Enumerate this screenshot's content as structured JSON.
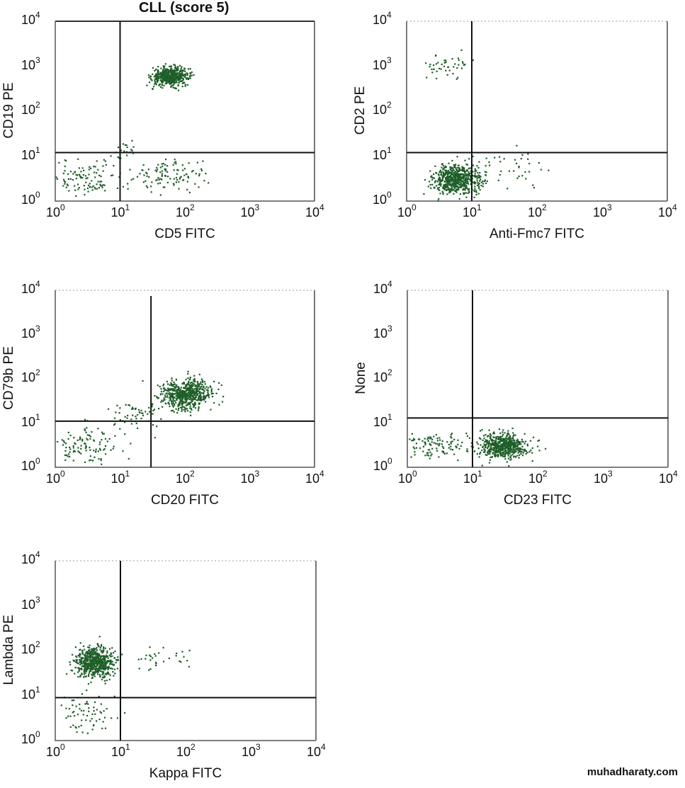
{
  "chart_data": [
    {
      "type": "scatter",
      "title": "CLL (score 5)",
      "xlabel": "CD5 FITC",
      "ylabel": "CD19 PE",
      "xscale": "log",
      "yscale": "log",
      "xlim": [
        1,
        10000
      ],
      "ylim": [
        1,
        10000
      ],
      "xticks": [
        "10^0",
        "10^1",
        "10^2",
        "10^3",
        "10^4"
      ],
      "yticks": [
        "10^0",
        "10^1",
        "10^2",
        "10^3",
        "10^4"
      ],
      "quadrant_x": 10,
      "quadrant_y": 12,
      "clusters": [
        {
          "x": 60,
          "y": 600,
          "sx": 0.14,
          "sy": 0.1,
          "n": 520
        },
        {
          "x": 3,
          "y": 3,
          "sx": 0.3,
          "sy": 0.22,
          "n": 110
        },
        {
          "x": 60,
          "y": 4,
          "sx": 0.3,
          "sy": 0.2,
          "n": 110
        },
        {
          "x": 12,
          "y": 14,
          "sx": 0.1,
          "sy": 0.1,
          "n": 20
        }
      ]
    },
    {
      "type": "scatter",
      "title": "",
      "xlabel": "Anti-Fmc7 FITC",
      "ylabel": "CD2 PE",
      "xscale": "log",
      "yscale": "log",
      "xlim": [
        1,
        10000
      ],
      "ylim": [
        1,
        10000
      ],
      "xticks": [
        "10^0",
        "10^1",
        "10^2",
        "10^3",
        "10^4"
      ],
      "yticks": [
        "10^0",
        "10^1",
        "10^2",
        "10^3",
        "10^4"
      ],
      "quadrant_x": 10,
      "quadrant_y": 12,
      "clusters": [
        {
          "x": 6,
          "y": 3,
          "sx": 0.18,
          "sy": 0.16,
          "n": 620
        },
        {
          "x": 4,
          "y": 1000,
          "sx": 0.2,
          "sy": 0.12,
          "n": 45
        },
        {
          "x": 40,
          "y": 5,
          "sx": 0.3,
          "sy": 0.25,
          "n": 40
        }
      ]
    },
    {
      "type": "scatter",
      "title": "",
      "xlabel": "CD20 FITC",
      "ylabel": "CD79b PE",
      "xscale": "log",
      "yscale": "log",
      "xlim": [
        1,
        10000
      ],
      "ylim": [
        1,
        10000
      ],
      "xticks": [
        "10^0",
        "10^1",
        "10^2",
        "10^3",
        "10^4"
      ],
      "yticks": [
        "10^0",
        "10^1",
        "10^2",
        "10^3",
        "10^4"
      ],
      "quadrant_x": 30,
      "quadrant_y": 11,
      "clusters": [
        {
          "x": 100,
          "y": 45,
          "sx": 0.2,
          "sy": 0.17,
          "n": 600
        },
        {
          "x": 3,
          "y": 3,
          "sx": 0.28,
          "sy": 0.22,
          "n": 110
        },
        {
          "x": 18,
          "y": 15,
          "sx": 0.25,
          "sy": 0.22,
          "n": 60
        }
      ]
    },
    {
      "type": "scatter",
      "title": "",
      "xlabel": "CD23 FITC",
      "ylabel": "None",
      "xscale": "log",
      "yscale": "log",
      "xlim": [
        1,
        10000
      ],
      "ylim": [
        1,
        10000
      ],
      "xticks": [
        "10^0",
        "10^1",
        "10^2",
        "10^3",
        "10^4"
      ],
      "yticks": [
        "10^0",
        "10^1",
        "10^2",
        "10^3",
        "10^4"
      ],
      "quadrant_x": 10,
      "quadrant_y": 13,
      "clusters": [
        {
          "x": 30,
          "y": 3,
          "sx": 0.18,
          "sy": 0.14,
          "n": 580
        },
        {
          "x": 3,
          "y": 3,
          "sx": 0.25,
          "sy": 0.15,
          "n": 110
        }
      ]
    },
    {
      "type": "scatter",
      "title": "",
      "xlabel": "Kappa FITC",
      "ylabel": "Lambda PE",
      "xscale": "log",
      "yscale": "log",
      "xlim": [
        1,
        10000
      ],
      "ylim": [
        1,
        10000
      ],
      "xticks": [
        "10^0",
        "10^1",
        "10^2",
        "10^3",
        "10^4"
      ],
      "yticks": [
        "10^0",
        "10^1",
        "10^2",
        "10^3",
        "10^4"
      ],
      "quadrant_x": 10,
      "quadrant_y": 9,
      "clusters": [
        {
          "x": 4,
          "y": 55,
          "sx": 0.16,
          "sy": 0.17,
          "n": 620
        },
        {
          "x": 3,
          "y": 4,
          "sx": 0.25,
          "sy": 0.25,
          "n": 70
        },
        {
          "x": 40,
          "y": 70,
          "sx": 0.25,
          "sy": 0.12,
          "n": 30
        }
      ]
    }
  ],
  "dot_color": "#1e5e28",
  "axis_color": "#111111",
  "watermark": "muhadharaty.com"
}
